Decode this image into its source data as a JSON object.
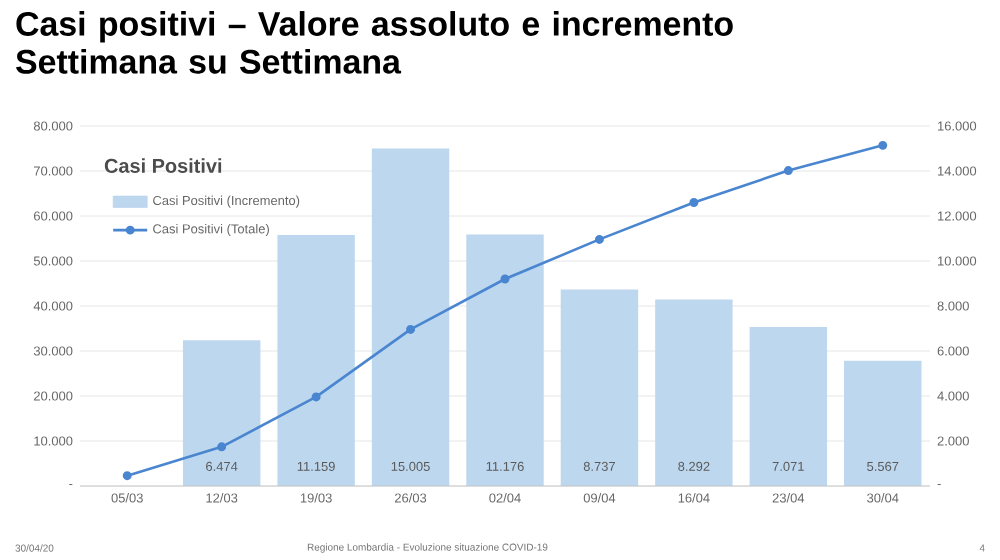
{
  "chart_data": {
    "type": "bar",
    "title": "Casi positivi – Valore assoluto e incremento Settimana su Settimana",
    "subtitle": "Casi Positivi",
    "categories": [
      "05/03",
      "12/03",
      "19/03",
      "26/03",
      "02/04",
      "09/04",
      "16/04",
      "23/04",
      "30/04"
    ],
    "series": [
      {
        "name": "Casi Positivi (Incremento)",
        "axis": "y2",
        "color": "#bdd7ee",
        "values": [
          null,
          6474,
          11159,
          15005,
          11176,
          8737,
          8292,
          7071,
          5567
        ],
        "value_labels": [
          null,
          "6.474",
          "11.159",
          "15.005",
          "11.176",
          "8.737",
          "8.292",
          "7.071",
          "5.567"
        ]
      },
      {
        "name": "Casi Positivi (Totale)",
        "type": "line",
        "axis": "y",
        "color": "#4a86d0",
        "values": [
          2300,
          8700,
          19800,
          34800,
          46000,
          54800,
          63000,
          70100,
          75700
        ]
      }
    ],
    "marker": "circle",
    "grid": "y",
    "legend": "top left",
    "ylim": [
      0,
      80000
    ],
    "yticks": [
      {
        "value": 0,
        "label": "-"
      },
      {
        "value": 10000,
        "label": "10.000"
      },
      {
        "value": 20000,
        "label": "20.000"
      },
      {
        "value": 30000,
        "label": "30.000"
      },
      {
        "value": 40000,
        "label": "40.000"
      },
      {
        "value": 50000,
        "label": "50.000"
      },
      {
        "value": 60000,
        "label": "60.000"
      },
      {
        "value": 70000,
        "label": "70.000"
      },
      {
        "value": 80000,
        "label": "80.000"
      }
    ],
    "y2lim": [
      0,
      16000
    ],
    "y2ticks": [
      {
        "value": 0,
        "label": "-"
      },
      {
        "value": 2000,
        "label": "2.000"
      },
      {
        "value": 4000,
        "label": "4.000"
      },
      {
        "value": 6000,
        "label": "6.000"
      },
      {
        "value": 8000,
        "label": "8.000"
      },
      {
        "value": 10000,
        "label": "10.000"
      },
      {
        "value": 12000,
        "label": "12.000"
      },
      {
        "value": 14000,
        "label": "14.000"
      },
      {
        "value": 16000,
        "label": "16.000"
      }
    ],
    "annotations": [
      "30/04/20",
      "Regione Lombardia - Evoluzione situazione COVID-19",
      "4"
    ]
  }
}
